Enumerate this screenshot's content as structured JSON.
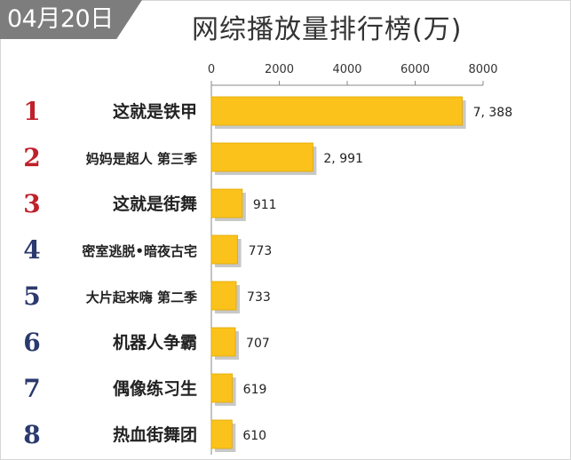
{
  "date_badge": "04月20日",
  "chart_data": {
    "type": "bar",
    "orientation": "horizontal",
    "title": "网综播放量排行榜(万)",
    "categories": [
      "这就是铁甲",
      "妈妈是超人 第三季",
      "这就是街舞",
      "密室逃脱•暗夜古宅",
      "大片起来嗨 第二季",
      "机器人争霸",
      "偶像练习生",
      "热血街舞团"
    ],
    "ranks": [
      "1",
      "2",
      "3",
      "4",
      "5",
      "6",
      "7",
      "8"
    ],
    "values": [
      7388,
      2991,
      911,
      773,
      733,
      707,
      619,
      610
    ],
    "value_labels": [
      "7, 388",
      "2, 991",
      "911",
      "773",
      "733",
      "707",
      "619",
      "610"
    ],
    "xlim": [
      0,
      8000
    ],
    "xticks": [
      "0",
      "2000",
      "4000",
      "6000",
      "8000"
    ],
    "xtick_values": [
      0,
      2000,
      4000,
      6000,
      8000
    ],
    "grid": false,
    "legend": "none",
    "colors": {
      "bar": "#fbc21b",
      "bar_shadow": "#9a9a9a",
      "rank_red": "#c0202a",
      "rank_navy": "#2b3a6e",
      "text": "#222222",
      "axis": "#888888"
    }
  }
}
